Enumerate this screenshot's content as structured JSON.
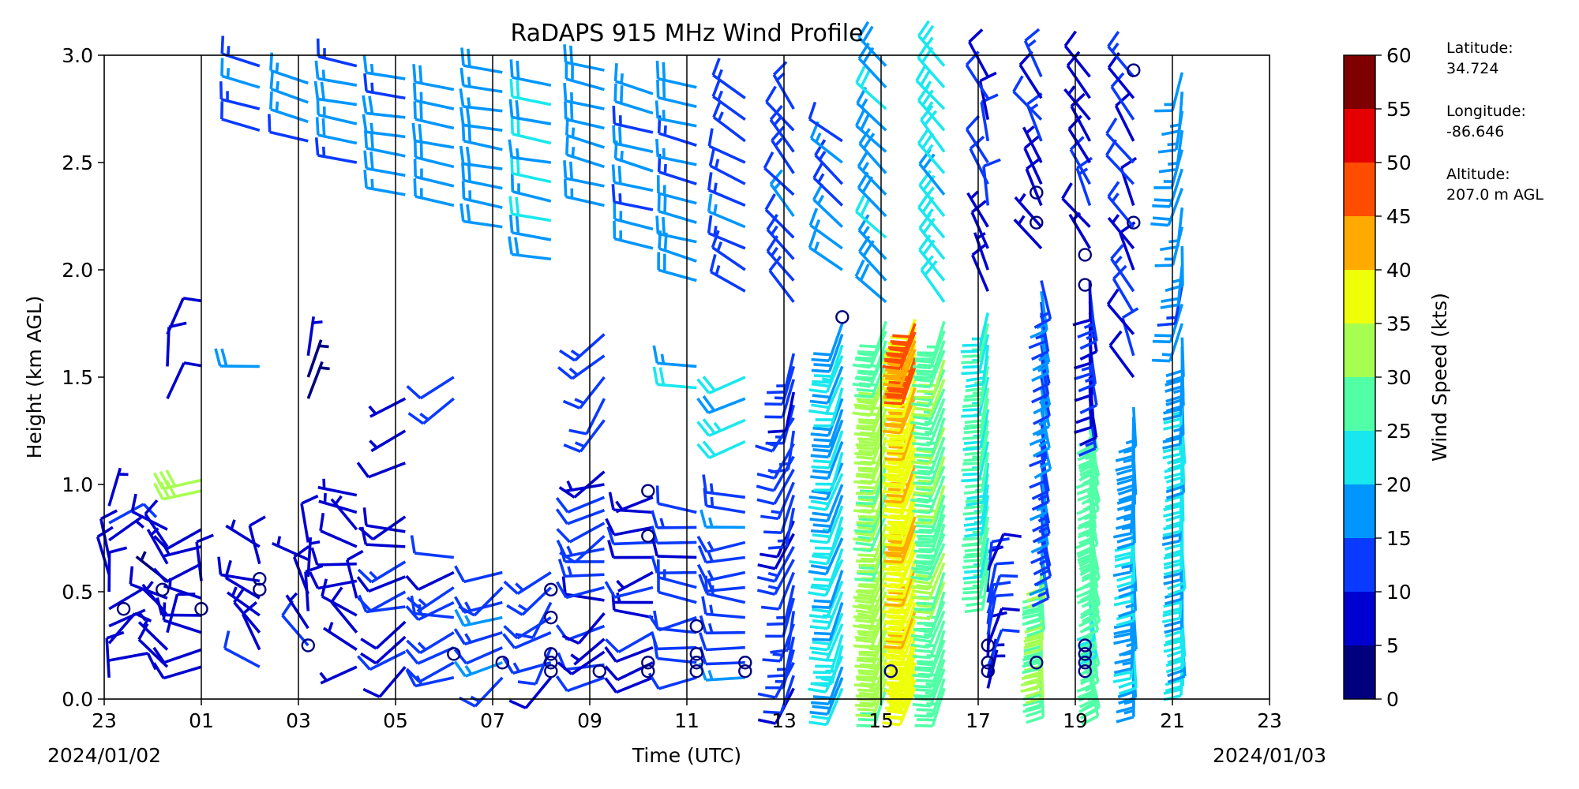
{
  "chart_data": {
    "type": "wind_barb_time_height",
    "title": "RaDAPS 915 MHz Wind Profile",
    "xlabel": "Time (UTC)",
    "ylabel": "Height (km AGL)",
    "x_tick_labels": [
      "23",
      "01",
      "03",
      "05",
      "07",
      "09",
      "11",
      "13",
      "15",
      "17",
      "19",
      "21",
      "23"
    ],
    "x_range_hours": [
      -1,
      23
    ],
    "date_start": "2024/01/02",
    "date_end": "2024/01/03",
    "y_ticks": [
      "0.0",
      "0.5",
      "1.0",
      "1.5",
      "2.0",
      "2.5",
      "3.0"
    ],
    "ylim": [
      0,
      3.0
    ],
    "vertical_gridlines_at_hours": [
      1,
      3,
      5,
      7,
      9,
      11,
      13,
      15,
      17,
      19,
      21
    ],
    "colorbar": {
      "label": "Wind Speed (kts)",
      "boundaries": [
        0,
        5,
        10,
        15,
        20,
        25,
        30,
        35,
        40,
        45,
        50,
        55,
        60
      ],
      "tick_labels": [
        "0",
        "5",
        "10",
        "15",
        "20",
        "25",
        "30",
        "35",
        "40",
        "45",
        "50",
        "55",
        "60"
      ],
      "colors": [
        "#00007f",
        "#0000d0",
        "#0a3aff",
        "#0096ff",
        "#18e8ee",
        "#50ffa6",
        "#a6ff50",
        "#eeff09",
        "#ffaa00",
        "#ff4d00",
        "#e50000",
        "#7f0000"
      ]
    },
    "station": {
      "latitude_label": "Latitude:",
      "latitude": "34.724",
      "longitude_label": "Longitude:",
      "longitude": "-86.646",
      "altitude_label": "Altitude:",
      "altitude": "207.0 m AGL"
    },
    "profiles": [
      {
        "hour": -0.9,
        "bands": [
          {
            "z0": 0.1,
            "z1": 0.95,
            "dz": 0.08,
            "spd": 8,
            "dir": 20,
            "jit": 120
          }
        ]
      },
      {
        "hour": 0.3,
        "bands": [
          {
            "z0": 0.15,
            "z1": 0.85,
            "dz": 0.08,
            "spd": 7,
            "dir": 330,
            "jit": 120
          },
          {
            "z0": 1.4,
            "z1": 1.7,
            "dz": 0.15,
            "spd": 8,
            "dir": 10,
            "jit": 40
          }
        ]
      },
      {
        "hour": 1.0,
        "bands": [
          {
            "z0": 0.15,
            "z1": 0.8,
            "dz": 0.08,
            "spd": 8,
            "dir": 300,
            "jit": 120
          },
          {
            "z0": 0.97,
            "z1": 1.05,
            "dz": 0.05,
            "spd": 32,
            "dir": 260,
            "jit": 10
          }
        ]
      },
      {
        "hour": 2.2,
        "bands": [
          {
            "z0": 0.15,
            "z1": 0.75,
            "dz": 0.08,
            "spd": 9,
            "dir": 300,
            "jit": 100
          },
          {
            "z0": 1.55,
            "z1": 1.62,
            "dz": 0.1,
            "spd": 17,
            "dir": 270,
            "jit": 5
          },
          {
            "z0": 2.65,
            "z1": 2.95,
            "dz": 0.1,
            "spd": 14,
            "dir": 285,
            "jit": 10
          }
        ]
      },
      {
        "hour": 3.2,
        "bands": [
          {
            "z0": 0.25,
            "z1": 0.75,
            "dz": 0.08,
            "spd": 8,
            "dir": 320,
            "jit": 100
          },
          {
            "z0": 1.4,
            "z1": 1.6,
            "dz": 0.1,
            "spd": 6,
            "dir": 10,
            "jit": 30
          },
          {
            "z0": 2.6,
            "z1": 2.95,
            "dz": 0.09,
            "spd": 15,
            "dir": 285,
            "jit": 10
          }
        ]
      },
      {
        "hour": 4.2,
        "bands": [
          {
            "z0": 0.15,
            "z1": 0.95,
            "dz": 0.08,
            "spd": 8,
            "dir": 300,
            "jit": 110
          },
          {
            "z0": 2.5,
            "z1": 2.95,
            "dz": 0.09,
            "spd": 16,
            "dir": 280,
            "jit": 10
          }
        ]
      },
      {
        "hour": 5.2,
        "bands": [
          {
            "z0": 0.15,
            "z1": 0.9,
            "dz": 0.07,
            "spd": 10,
            "dir": 250,
            "jit": 60
          },
          {
            "z0": 1.1,
            "z1": 1.5,
            "dz": 0.15,
            "spd": 8,
            "dir": 230,
            "jit": 40
          },
          {
            "z0": 2.35,
            "z1": 2.9,
            "dz": 0.09,
            "spd": 17,
            "dir": 280,
            "jit": 8
          }
        ]
      },
      {
        "hour": 6.2,
        "bands": [
          {
            "z0": 0.1,
            "z1": 0.7,
            "dz": 0.07,
            "spd": 12,
            "dir": 250,
            "jit": 60
          },
          {
            "z0": 1.4,
            "z1": 1.55,
            "dz": 0.1,
            "spd": 12,
            "dir": 240,
            "jit": 20
          },
          {
            "z0": 2.3,
            "z1": 2.85,
            "dz": 0.09,
            "spd": 18,
            "dir": 280,
            "jit": 8
          }
        ]
      },
      {
        "hour": 7.2,
        "bands": [
          {
            "z0": 0.1,
            "z1": 0.65,
            "dz": 0.07,
            "spd": 14,
            "dir": 240,
            "jit": 40
          },
          {
            "z0": 2.2,
            "z1": 2.95,
            "dz": 0.09,
            "spd": 18,
            "dir": 280,
            "jit": 8
          }
        ]
      },
      {
        "hour": 8.2,
        "bands": [
          {
            "z0": 0.1,
            "z1": 0.6,
            "dz": 0.07,
            "spd": 12,
            "dir": 230,
            "jit": 60
          },
          {
            "z0": 2.05,
            "z1": 2.9,
            "dz": 0.09,
            "spd": 19,
            "dir": 280,
            "jit": 8
          }
        ]
      },
      {
        "hour": 9.3,
        "bands": [
          {
            "z0": 0.1,
            "z1": 1.1,
            "dz": 0.06,
            "spd": 10,
            "dir": 250,
            "jit": 60
          },
          {
            "z0": 1.3,
            "z1": 1.7,
            "dz": 0.1,
            "spd": 12,
            "dir": 220,
            "jit": 30
          },
          {
            "z0": 2.3,
            "z1": 2.95,
            "dz": 0.09,
            "spd": 18,
            "dir": 285,
            "jit": 8
          }
        ]
      },
      {
        "hour": 10.3,
        "bands": [
          {
            "z0": 0.1,
            "z1": 1.0,
            "dz": 0.07,
            "spd": 10,
            "dir": 260,
            "jit": 50
          },
          {
            "z0": 2.1,
            "z1": 2.9,
            "dz": 0.09,
            "spd": 17,
            "dir": 285,
            "jit": 8
          }
        ]
      },
      {
        "hour": 11.2,
        "bands": [
          {
            "z0": 0.1,
            "z1": 0.9,
            "dz": 0.07,
            "spd": 12,
            "dir": 270,
            "jit": 40
          },
          {
            "z0": 1.45,
            "z1": 1.55,
            "dz": 0.1,
            "spd": 18,
            "dir": 275,
            "jit": 5
          },
          {
            "z0": 1.95,
            "z1": 2.85,
            "dz": 0.09,
            "spd": 17,
            "dir": 285,
            "jit": 8
          }
        ]
      },
      {
        "hour": 12.2,
        "bands": [
          {
            "z0": 0.1,
            "z1": 0.95,
            "dz": 0.07,
            "spd": 13,
            "dir": 270,
            "jit": 30
          },
          {
            "z0": 1.2,
            "z1": 1.5,
            "dz": 0.1,
            "spd": 22,
            "dir": 250,
            "jit": 10
          },
          {
            "z0": 1.9,
            "z1": 2.8,
            "dz": 0.1,
            "spd": 14,
            "dir": 300,
            "jit": 15
          }
        ]
      },
      {
        "hour": 13.2,
        "bands": [
          {
            "z0": 0.05,
            "z1": 1.65,
            "dz": 0.06,
            "spd": 12,
            "dir": 200,
            "jit": 25
          },
          {
            "z0": 1.85,
            "z1": 2.75,
            "dz": 0.1,
            "spd": 13,
            "dir": 320,
            "jit": 20
          }
        ]
      },
      {
        "hour": 14.2,
        "bands": [
          {
            "z0": 0.05,
            "z1": 1.75,
            "dz": 0.05,
            "spd": 20,
            "dir": 200,
            "jit": 10
          },
          {
            "z0": 2.0,
            "z1": 2.6,
            "dz": 0.1,
            "spd": 14,
            "dir": 310,
            "jit": 15
          }
        ]
      },
      {
        "hour": 15.1,
        "bands": [
          {
            "z0": 0.05,
            "z1": 1.8,
            "dz": 0.045,
            "spd": 32,
            "dir": 200,
            "jit": 8
          },
          {
            "z0": 1.85,
            "z1": 2.95,
            "dz": 0.1,
            "spd": 18,
            "dir": 315,
            "jit": 10
          }
        ]
      },
      {
        "hour": 15.7,
        "bands": [
          {
            "z0": 0.05,
            "z1": 1.8,
            "dz": 0.04,
            "spd": 38,
            "dir": 200,
            "jit": 6
          },
          {
            "z0": 1.55,
            "z1": 1.78,
            "dz": 0.04,
            "spd": 47,
            "dir": 200,
            "jit": 5
          }
        ]
      },
      {
        "hour": 16.3,
        "bands": [
          {
            "z0": 0.05,
            "z1": 1.8,
            "dz": 0.045,
            "spd": 28,
            "dir": 200,
            "jit": 8
          },
          {
            "z0": 1.85,
            "z1": 2.95,
            "dz": 0.1,
            "spd": 22,
            "dir": 320,
            "jit": 10
          }
        ]
      },
      {
        "hour": 17.2,
        "bands": [
          {
            "z0": 0.05,
            "z1": 0.6,
            "dz": 0.05,
            "spd": 10,
            "dir": 10,
            "jit": 30
          },
          {
            "z0": 0.6,
            "z1": 1.8,
            "dz": 0.05,
            "spd": 26,
            "dir": 190,
            "jit": 8
          },
          {
            "z0": 1.9,
            "z1": 2.95,
            "dz": 0.1,
            "spd": 10,
            "dir": 340,
            "jit": 30
          }
        ]
      },
      {
        "hour": 18.3,
        "bands": [
          {
            "z0": 0.1,
            "z1": 0.65,
            "dz": 0.045,
            "spd": 30,
            "dir": 180,
            "jit": 10
          },
          {
            "z0": 0.65,
            "z1": 1.95,
            "dz": 0.05,
            "spd": 14,
            "dir": 170,
            "jit": 8
          },
          {
            "z0": 2.1,
            "z1": 2.9,
            "dz": 0.1,
            "spd": 10,
            "dir": 330,
            "jit": 30
          }
        ]
      },
      {
        "hour": 19.3,
        "bands": [
          {
            "z0": 0.1,
            "z1": 1.35,
            "dz": 0.04,
            "spd": 27,
            "dir": 170,
            "jit": 8
          },
          {
            "z0": 1.35,
            "z1": 1.95,
            "dz": 0.05,
            "spd": 12,
            "dir": 175,
            "jit": 10
          },
          {
            "z0": 2.1,
            "z1": 2.9,
            "dz": 0.1,
            "spd": 10,
            "dir": 330,
            "jit": 30
          }
        ]
      },
      {
        "hour": 20.2,
        "bands": [
          {
            "z0": 0.1,
            "z1": 1.4,
            "dz": 0.045,
            "spd": 18,
            "dir": 180,
            "jit": 8
          },
          {
            "z0": 1.5,
            "z1": 2.9,
            "dz": 0.1,
            "spd": 10,
            "dir": 330,
            "jit": 30
          }
        ]
      },
      {
        "hour": 21.2,
        "bands": [
          {
            "z0": 0.2,
            "z1": 1.7,
            "dz": 0.045,
            "spd": 20,
            "dir": 180,
            "jit": 8
          },
          {
            "z0": 1.75,
            "z1": 2.95,
            "dz": 0.09,
            "spd": 16,
            "dir": 190,
            "jit": 25
          }
        ]
      }
    ],
    "calm_points": [
      [
        -0.6,
        0.42
      ],
      [
        0.2,
        0.51
      ],
      [
        1.0,
        0.42
      ],
      [
        2.2,
        0.51
      ],
      [
        2.2,
        0.56
      ],
      [
        3.2,
        0.25
      ],
      [
        6.2,
        0.21
      ],
      [
        7.2,
        0.17
      ],
      [
        8.2,
        0.13
      ],
      [
        8.2,
        0.17
      ],
      [
        8.2,
        0.21
      ],
      [
        8.2,
        0.38
      ],
      [
        8.2,
        0.51
      ],
      [
        9.2,
        0.13
      ],
      [
        10.2,
        0.13
      ],
      [
        10.2,
        0.17
      ],
      [
        10.2,
        0.76
      ],
      [
        10.2,
        0.97
      ],
      [
        11.2,
        0.13
      ],
      [
        11.2,
        0.17
      ],
      [
        11.2,
        0.21
      ],
      [
        11.2,
        0.34
      ],
      [
        12.2,
        0.13
      ],
      [
        12.2,
        0.17
      ],
      [
        14.2,
        1.78
      ],
      [
        15.2,
        0.13
      ],
      [
        17.2,
        0.13
      ],
      [
        17.2,
        0.17
      ],
      [
        17.2,
        0.25
      ],
      [
        18.2,
        0.17
      ],
      [
        18.2,
        2.22
      ],
      [
        18.2,
        2.36
      ],
      [
        19.2,
        0.13
      ],
      [
        19.2,
        0.17
      ],
      [
        19.2,
        0.21
      ],
      [
        19.2,
        0.25
      ],
      [
        19.2,
        1.93
      ],
      [
        19.2,
        2.07
      ],
      [
        20.2,
        2.22
      ],
      [
        20.2,
        2.93
      ]
    ]
  }
}
